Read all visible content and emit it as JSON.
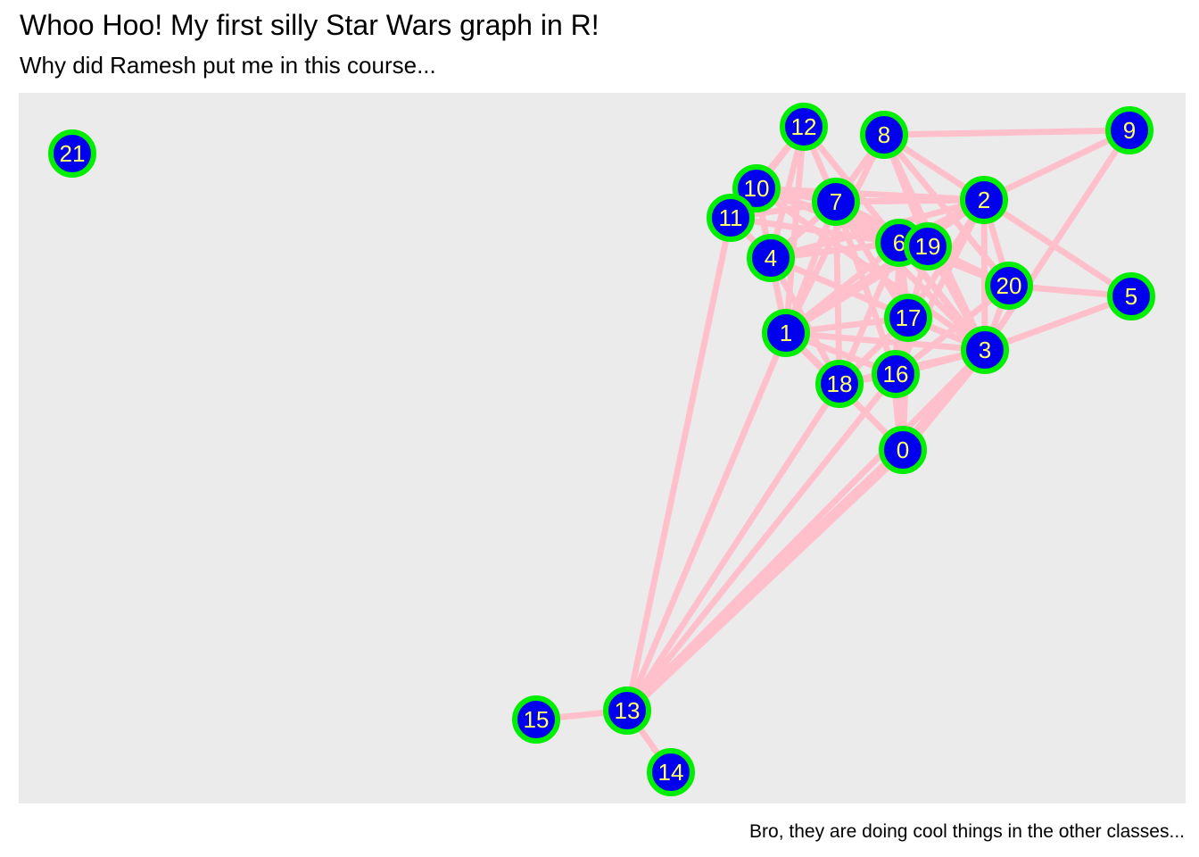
{
  "title": "Whoo Hoo! My first silly Star Wars graph in R!",
  "subtitle": "Why did Ramesh put me in this course...",
  "caption": "Bro, they are doing cool things in the other classes...",
  "colors": {
    "panel": "#ebebeb",
    "edge": "#ffc0cb",
    "node_fill": "#0000ee",
    "node_stroke": "#00ee00",
    "node_label": "#ffff66"
  },
  "nodes": [
    "0",
    "1",
    "2",
    "3",
    "4",
    "5",
    "6",
    "7",
    "8",
    "9",
    "10",
    "11",
    "12",
    "13",
    "14",
    "15",
    "16",
    "17",
    "18",
    "19",
    "20",
    "21"
  ],
  "edges": [
    [
      "13",
      "15"
    ],
    [
      "13",
      "14"
    ],
    [
      "13",
      "0"
    ],
    [
      "13",
      "1"
    ],
    [
      "13",
      "18"
    ],
    [
      "13",
      "3"
    ],
    [
      "13",
      "11"
    ],
    [
      "13",
      "16"
    ],
    [
      "0",
      "16"
    ],
    [
      "0",
      "3"
    ],
    [
      "0",
      "6"
    ],
    [
      "0",
      "1"
    ],
    [
      "0",
      "17"
    ],
    [
      "3",
      "5"
    ],
    [
      "3",
      "2"
    ],
    [
      "3",
      "17"
    ],
    [
      "3",
      "16"
    ],
    [
      "3",
      "1"
    ],
    [
      "3",
      "20"
    ],
    [
      "3",
      "6"
    ],
    [
      "3",
      "19"
    ],
    [
      "3",
      "7"
    ],
    [
      "3",
      "4"
    ],
    [
      "3",
      "18"
    ],
    [
      "3",
      "10"
    ],
    [
      "3",
      "12"
    ],
    [
      "5",
      "20"
    ],
    [
      "5",
      "2"
    ],
    [
      "9",
      "8"
    ],
    [
      "9",
      "2"
    ],
    [
      "9",
      "3"
    ],
    [
      "8",
      "2"
    ],
    [
      "8",
      "20"
    ],
    [
      "8",
      "19"
    ],
    [
      "8",
      "3"
    ],
    [
      "8",
      "7"
    ],
    [
      "8",
      "1"
    ],
    [
      "2",
      "7"
    ],
    [
      "2",
      "10"
    ],
    [
      "2",
      "6"
    ],
    [
      "2",
      "17"
    ],
    [
      "2",
      "1"
    ],
    [
      "2",
      "20"
    ],
    [
      "2",
      "16"
    ],
    [
      "2",
      "4"
    ],
    [
      "12",
      "10"
    ],
    [
      "12",
      "7"
    ],
    [
      "12",
      "1"
    ],
    [
      "12",
      "11"
    ],
    [
      "12",
      "4"
    ],
    [
      "10",
      "11"
    ],
    [
      "10",
      "7"
    ],
    [
      "10",
      "4"
    ],
    [
      "10",
      "1"
    ],
    [
      "10",
      "6"
    ],
    [
      "10",
      "19"
    ],
    [
      "11",
      "7"
    ],
    [
      "11",
      "4"
    ],
    [
      "11",
      "6"
    ],
    [
      "7",
      "6"
    ],
    [
      "7",
      "19"
    ],
    [
      "7",
      "1"
    ],
    [
      "7",
      "17"
    ],
    [
      "7",
      "18"
    ],
    [
      "7",
      "4"
    ],
    [
      "7",
      "16"
    ],
    [
      "6",
      "19"
    ],
    [
      "6",
      "17"
    ],
    [
      "6",
      "16"
    ],
    [
      "6",
      "18"
    ],
    [
      "6",
      "4"
    ],
    [
      "6",
      "20"
    ],
    [
      "6",
      "1"
    ],
    [
      "19",
      "20"
    ],
    [
      "19",
      "1"
    ],
    [
      "19",
      "16"
    ],
    [
      "17",
      "1"
    ],
    [
      "17",
      "16"
    ],
    [
      "17",
      "18"
    ],
    [
      "1",
      "4"
    ],
    [
      "1",
      "18"
    ],
    [
      "1",
      "16"
    ],
    [
      "18",
      "16"
    ],
    [
      "4",
      "18"
    ],
    [
      "20",
      "16"
    ]
  ],
  "heavy_edges": [
    [
      "13",
      "0"
    ],
    [
      "0",
      "16"
    ],
    [
      "0",
      "3"
    ]
  ]
}
